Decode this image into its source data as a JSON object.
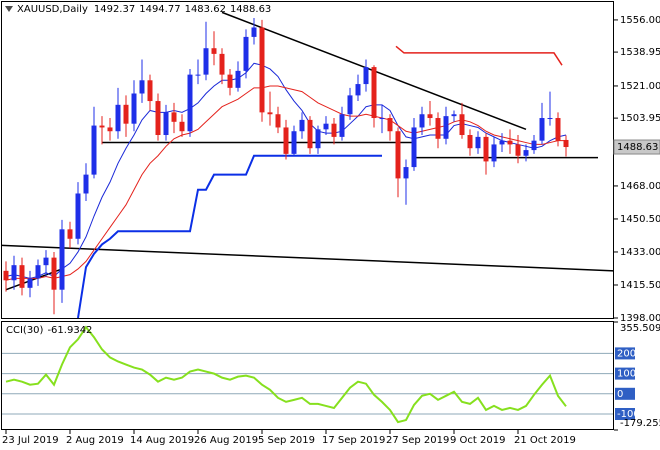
{
  "chart_data": [
    {
      "type": "candlestick",
      "title": "XAUUSD,Daily",
      "categories": [
        "23 Jul 2019",
        null,
        null,
        null,
        null,
        null,
        null,
        null,
        "2 Aug 2019",
        null,
        null,
        null,
        null,
        null,
        null,
        null,
        "14 Aug 2019",
        null,
        null,
        null,
        null,
        null,
        null,
        null,
        "26 Aug 2019",
        null,
        null,
        null,
        null,
        null,
        null,
        null,
        "5 Sep 2019",
        null,
        null,
        null,
        null,
        null,
        null,
        null,
        "17 Sep 2019",
        null,
        null,
        null,
        null,
        null,
        null,
        null,
        "27 Sep 2019",
        null,
        null,
        null,
        null,
        null,
        null,
        null,
        "9 Oct 2019",
        null,
        null,
        null,
        null,
        null,
        null,
        null,
        "21 Oct 2019",
        null,
        null,
        null,
        null,
        null,
        null
      ],
      "open": [
        1423,
        1418,
        1426,
        1414,
        1419,
        1426,
        1430,
        1413,
        1445,
        1440,
        1464,
        1474,
        1500,
        1499,
        1497,
        1511,
        1501,
        1517,
        1524,
        1513,
        1495,
        1507,
        1502,
        1497,
        1527,
        1527,
        1541,
        1538,
        1527,
        1520,
        1529,
        1547,
        1552,
        1507,
        1506,
        1499,
        1485,
        1497,
        1503,
        1488,
        1498,
        1501,
        1494,
        1506,
        1516,
        1522,
        1531,
        1504,
        1504,
        1497,
        1472,
        1478,
        1499,
        1506,
        1504,
        1493,
        1505,
        1506,
        1495,
        1488,
        1494,
        1481,
        1490,
        1492,
        1490,
        1484,
        1487,
        1492,
        1504,
        1504,
        1492.37
      ],
      "high": [
        1428,
        1431,
        1430,
        1423,
        1429,
        1434,
        1433,
        1450,
        1449,
        1470,
        1480,
        1510,
        1505,
        1504,
        1520,
        1516,
        1524,
        1535,
        1527,
        1517,
        1511,
        1512,
        1506,
        1530,
        1535,
        1555,
        1550,
        1541,
        1530,
        1534,
        1551,
        1557,
        1556,
        1518,
        1510,
        1503,
        1500,
        1507,
        1505,
        1500,
        1505,
        1504,
        1510,
        1520,
        1527,
        1535,
        1532,
        1511,
        1506,
        1499,
        1482,
        1504,
        1510,
        1513,
        1507,
        1510,
        1508,
        1512,
        1498,
        1497,
        1496,
        1494,
        1496,
        1498,
        1495,
        1490,
        1495,
        1512,
        1518,
        1507,
        1494.77
      ],
      "low": [
        1412,
        1413,
        1410,
        1409,
        1415,
        1420,
        1400,
        1406,
        1435,
        1437,
        1460,
        1472,
        1490,
        1492,
        1493,
        1494,
        1497,
        1512,
        1508,
        1492,
        1492,
        1496,
        1494,
        1494,
        1522,
        1524,
        1532,
        1522,
        1516,
        1518,
        1525,
        1543,
        1502,
        1500,
        1496,
        1482,
        1484,
        1493,
        1485,
        1485,
        1495,
        1490,
        1492,
        1503,
        1513,
        1518,
        1499,
        1496,
        1492,
        1462,
        1458,
        1476,
        1495,
        1500,
        1488,
        1490,
        1502,
        1493,
        1484,
        1485,
        1474,
        1478,
        1486,
        1485,
        1480,
        1481,
        1485,
        1490,
        1500,
        1489,
        1483.62
      ],
      "close": [
        1418,
        1426,
        1414,
        1419,
        1426,
        1430,
        1413,
        1445,
        1440,
        1464,
        1474,
        1500,
        1499,
        1497,
        1511,
        1501,
        1517,
        1524,
        1513,
        1495,
        1507,
        1502,
        1497,
        1527,
        1527,
        1541,
        1538,
        1527,
        1520,
        1529,
        1547,
        1552,
        1507,
        1506,
        1499,
        1485,
        1497,
        1503,
        1488,
        1498,
        1501,
        1494,
        1506,
        1516,
        1522,
        1531,
        1504,
        1504,
        1497,
        1472,
        1478,
        1499,
        1506,
        1504,
        1493,
        1505,
        1506,
        1495,
        1488,
        1494,
        1481,
        1490,
        1492,
        1490,
        1484,
        1487,
        1492,
        1504,
        1504,
        1492,
        1488.63
      ],
      "up_color": "#1f2fe8",
      "down_color": "#e4221c",
      "lines": [
        {
          "color": "#1a28d8",
          "width": 1,
          "values": [
            1420,
            1421,
            1420,
            1419,
            1420,
            1422,
            1420,
            1424,
            1427,
            1433,
            1441,
            1452,
            1462,
            1470,
            1480,
            1488,
            1495,
            1503,
            1508,
            1507,
            1507,
            1508,
            1507,
            1509,
            1512,
            1517,
            1521,
            1524,
            1524,
            1525,
            1528,
            1533,
            1532,
            1530,
            1526,
            1519,
            1513,
            1508,
            1501,
            1497,
            1496,
            1496,
            1497,
            1501,
            1505,
            1510,
            1511,
            1511,
            1508,
            1500,
            1494,
            1493,
            1494,
            1495,
            1495,
            1495,
            1500,
            1501,
            1500,
            1499,
            1496,
            1494,
            1492,
            1491,
            1490,
            1489,
            1488,
            1489,
            1492,
            1494,
            1495
          ]
        },
        {
          "color": "#e4221c",
          "width": 1,
          "values": [
            1418,
            1419,
            1419,
            1419,
            1419,
            1420,
            1419,
            1420,
            1421,
            1424,
            1428,
            1434,
            1440,
            1446,
            1452,
            1458,
            1466,
            1474,
            1480,
            1484,
            1489,
            1493,
            1495,
            1496,
            1498,
            1502,
            1506,
            1510,
            1512,
            1514,
            1517,
            1520,
            1520,
            1521,
            1521,
            1520,
            1519,
            1518,
            1515,
            1512,
            1510,
            1508,
            1506,
            1505,
            1505,
            1506,
            1505,
            1504,
            1503,
            1500,
            1497,
            1496,
            1497,
            1498,
            1499,
            1500,
            1502,
            1503,
            1502,
            1500,
            1497,
            1495,
            1494,
            1493,
            1492,
            1491,
            1490,
            1490,
            1491,
            1492,
            1492
          ]
        },
        {
          "color": "#0b2fe6",
          "width": 2,
          "values": [
            null,
            null,
            null,
            null,
            null,
            null,
            null,
            null,
            null,
            1398,
            1425,
            1432,
            1437,
            1440,
            1444,
            1444,
            1444,
            1444,
            1444,
            1444,
            1444,
            1444,
            1444,
            1444,
            1466,
            1466,
            1474,
            1474,
            1474,
            1474,
            1474,
            1484,
            1484,
            1484,
            1484,
            1484,
            1484,
            1484,
            1484,
            1484,
            1484,
            1484,
            1484,
            1484,
            1484,
            1484,
            1484,
            1484,
            null,
            null,
            null,
            null,
            null,
            null,
            null,
            null,
            null,
            null,
            null,
            null,
            null,
            null,
            null,
            null,
            null,
            null,
            null,
            null,
            null,
            null,
            null
          ]
        }
      ],
      "trendlines": [
        {
          "color": "#000000",
          "points": [
            [
              27,
              1560
            ],
            [
              65,
              1498
            ]
          ]
        },
        {
          "color": "#000000",
          "points": [
            [
              12,
              1491
            ],
            [
              51,
              1491
            ]
          ]
        },
        {
          "color": "#000000",
          "points": [
            [
              51,
              1483
            ],
            [
              74,
              1483
            ]
          ]
        },
        {
          "color": "#000000",
          "points": [
            [
              -0.5,
              1436.5
            ],
            [
              76,
              1423
            ]
          ]
        },
        {
          "color": "#000000",
          "points": [
            [
              0,
              1413
            ],
            [
              7,
              1424
            ]
          ]
        },
        {
          "color": "#e4221c",
          "points": [
            [
              48.75,
              1542
            ],
            [
              49.75,
              1538.5
            ],
            [
              68.5,
              1538.5
            ],
            [
              69.5,
              1532
            ]
          ]
        }
      ],
      "ylim": [
        1398,
        1565.5
      ],
      "yticks": [
        {
          "value": 1556,
          "label": "1556.00"
        },
        1538.95,
        {
          "value": 1521,
          "label": "1521.00"
        },
        1503.95,
        {
          "value": 1468,
          "label": "1468.00"
        },
        {
          "value": 1450.5,
          "label": "1450.50"
        },
        {
          "value": 1433,
          "label": "1433.00"
        },
        {
          "value": 1415.5,
          "label": "1415.50"
        },
        {
          "value": 1398,
          "label": "1398.00"
        }
      ]
    },
    {
      "type": "line",
      "title": "CCI(30)",
      "color": "#86e01e",
      "values": [
        60,
        70,
        60,
        45,
        50,
        95,
        45,
        145,
        230,
        270,
        330,
        280,
        220,
        180,
        160,
        145,
        130,
        120,
        95,
        60,
        80,
        70,
        80,
        110,
        120,
        110,
        100,
        80,
        70,
        85,
        90,
        80,
        45,
        20,
        -20,
        -40,
        -30,
        -20,
        -50,
        -50,
        -60,
        -70,
        -20,
        30,
        60,
        50,
        -5,
        -40,
        -80,
        -140,
        -130,
        -55,
        -10,
        0,
        -30,
        -10,
        10,
        -40,
        -50,
        -20,
        -80,
        -60,
        -80,
        -70,
        -80,
        -60,
        -5,
        45,
        90,
        -10,
        -61.9342
      ],
      "ylim": [
        -179.2554,
        355.5093
      ],
      "yticks": [
        355.5093,
        -179.2554
      ],
      "levels": [
        200,
        100,
        0,
        -100
      ]
    }
  ]
}
